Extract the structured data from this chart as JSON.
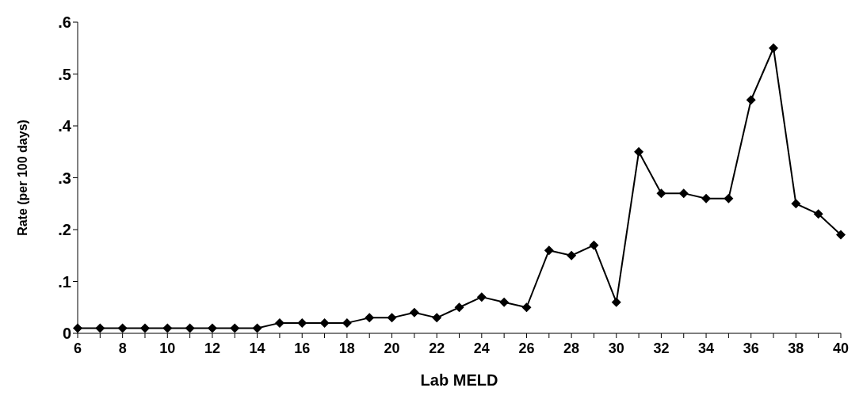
{
  "chart_data": {
    "type": "line",
    "xlabel": "Lab MELD",
    "ylabel": "Rate (per 100 days)",
    "categories": [
      "6",
      null,
      "8",
      null,
      "10",
      null,
      "12",
      null,
      "14",
      null,
      "16",
      null,
      "18",
      null,
      "20",
      null,
      "22",
      null,
      "24",
      null,
      "26",
      null,
      "28",
      null,
      "30",
      null,
      "32",
      null,
      "34",
      null,
      "36",
      null,
      "38",
      null,
      "40"
    ],
    "series": [
      {
        "color": "#000000",
        "values": [
          0.01,
          0.01,
          0.01,
          0.01,
          0.01,
          0.01,
          0.01,
          0.01,
          0.01,
          0.02,
          0.02,
          0.02,
          0.02,
          0.03,
          0.03,
          0.04,
          0.03,
          0.05,
          0.07,
          0.06,
          0.05,
          0.16,
          0.15,
          0.17,
          0.06,
          0.35,
          0.27,
          0.27,
          0.26,
          0.26,
          0.45,
          0.55,
          0.25,
          0.23,
          0.19
        ]
      }
    ],
    "ylim": [
      0,
      0.6
    ],
    "yticks": [
      {
        "value": 0,
        "label": "0"
      },
      {
        "value": 0.1,
        "label": ".1"
      },
      {
        "value": 0.2,
        "label": ".2"
      },
      {
        "value": 0.3,
        "label": ".3"
      },
      {
        "value": 0.4,
        "label": ".4"
      },
      {
        "value": 0.5,
        "label": ".5"
      },
      {
        "value": 0.6,
        "label": ".6"
      }
    ],
    "marker": "diamond",
    "line_style": "solid"
  }
}
